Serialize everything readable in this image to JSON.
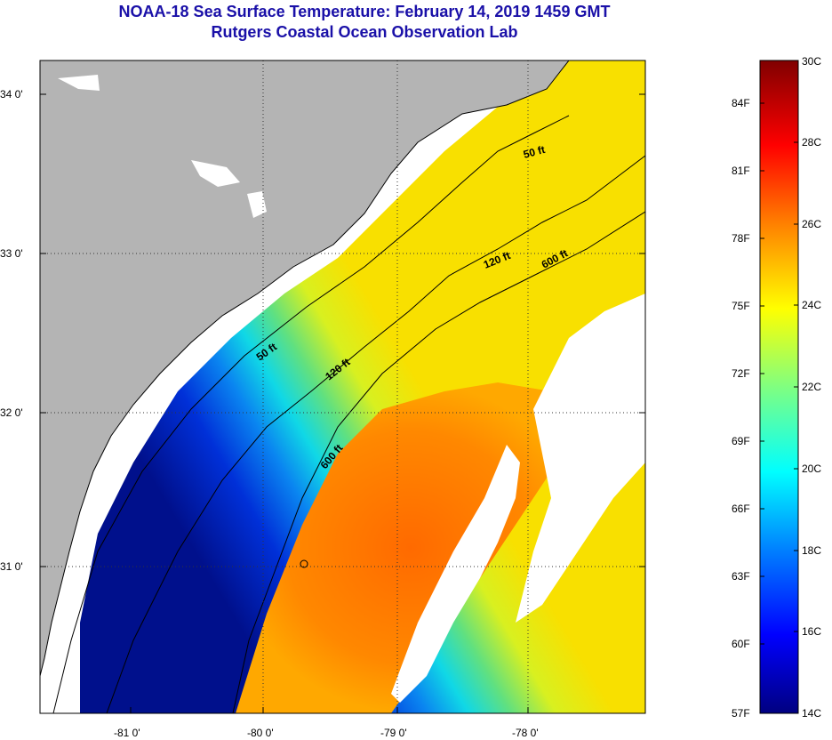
{
  "title": {
    "line1": "NOAA-18 Sea Surface Temperature:  February 14, 2019 1459 GMT",
    "line2": "Rutgers Coastal Ocean Observation Lab"
  },
  "map": {
    "lat_labels": [
      "34 0'",
      "33 0'",
      "32 0'",
      "31 0'"
    ],
    "lon_labels": [
      "-81 0'",
      "-80 0'",
      "-79 0'",
      "-78 0'"
    ],
    "contour_labels": {
      "c50_north": "50 ft",
      "c120_north": "120 ft",
      "c600_north": "600 ft",
      "c50_south": "50 ft",
      "c120_south": "120 ft",
      "c600_south": "600 ft"
    }
  },
  "colorbar": {
    "fahrenheit": [
      "84F",
      "81F",
      "78F",
      "75F",
      "72F",
      "69F",
      "66F",
      "63F",
      "60F",
      "57F"
    ],
    "celsius": [
      "30C",
      "28C",
      "26C",
      "24C",
      "22C",
      "20C",
      "18C",
      "16C",
      "14C"
    ]
  },
  "colors": {
    "land": "#b4b4b4",
    "cold": "#00108a",
    "warm": "#ff7a00",
    "title": "#1a10a8"
  }
}
